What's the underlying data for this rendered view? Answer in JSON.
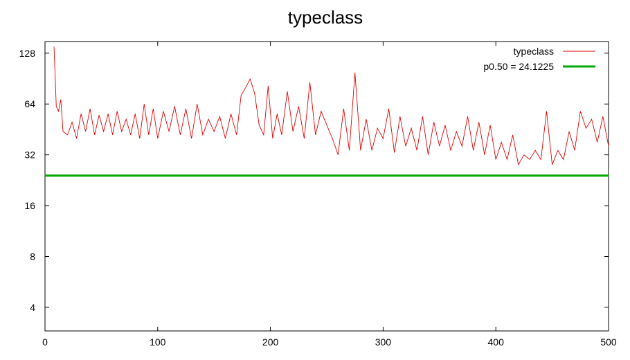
{
  "chart_data": {
    "type": "line",
    "title": "typeclass",
    "xlabel": "",
    "ylabel": "",
    "xlim": [
      0,
      500
    ],
    "ylim": [
      2.9,
      150
    ],
    "yscale": "log2",
    "x_ticks": [
      0,
      100,
      200,
      300,
      400,
      500
    ],
    "y_ticks": [
      4,
      8,
      16,
      32,
      64,
      128
    ],
    "grid": false,
    "legend_position": "top-right",
    "series": [
      {
        "name": "typeclass",
        "color": "#dd0000",
        "style": "thin-line",
        "x": [
          8,
          10,
          12,
          14,
          16,
          20,
          24,
          28,
          32,
          36,
          40,
          44,
          48,
          52,
          56,
          60,
          64,
          68,
          72,
          76,
          80,
          84,
          88,
          92,
          96,
          100,
          105,
          110,
          115,
          120,
          125,
          130,
          135,
          140,
          145,
          150,
          155,
          160,
          165,
          170,
          174,
          178,
          182,
          186,
          190,
          194,
          198,
          202,
          206,
          210,
          215,
          220,
          225,
          230,
          235,
          240,
          245,
          250,
          255,
          260,
          265,
          270,
          275,
          280,
          285,
          290,
          295,
          300,
          305,
          310,
          315,
          320,
          325,
          330,
          335,
          340,
          345,
          350,
          355,
          360,
          365,
          370,
          375,
          380,
          385,
          390,
          395,
          400,
          405,
          410,
          415,
          420,
          425,
          430,
          435,
          440,
          445,
          450,
          455,
          460,
          465,
          470,
          475,
          480,
          485,
          490,
          495,
          500
        ],
        "values": [
          140,
          62,
          58,
          68,
          44,
          42,
          50,
          40,
          56,
          44,
          60,
          42,
          55,
          44,
          56,
          42,
          58,
          44,
          52,
          42,
          56,
          40,
          64,
          42,
          60,
          40,
          58,
          44,
          62,
          42,
          60,
          40,
          64,
          42,
          52,
          44,
          54,
          40,
          56,
          42,
          72,
          80,
          90,
          74,
          48,
          42,
          82,
          40,
          56,
          42,
          76,
          44,
          62,
          40,
          86,
          42,
          58,
          48,
          40,
          32,
          60,
          34,
          98,
          34,
          52,
          34,
          46,
          40,
          60,
          33,
          54,
          36,
          46,
          34,
          54,
          32,
          50,
          36,
          48,
          34,
          44,
          36,
          54,
          34,
          50,
          32,
          48,
          30,
          38,
          30,
          42,
          28,
          32,
          30,
          34,
          30,
          58,
          28,
          34,
          30,
          44,
          34,
          58,
          46,
          52,
          38,
          54,
          36
        ]
      },
      {
        "name": "p0.50 = 24.1225",
        "color": "#00aa00",
        "style": "thick-line",
        "constant": 24.1225
      }
    ]
  }
}
